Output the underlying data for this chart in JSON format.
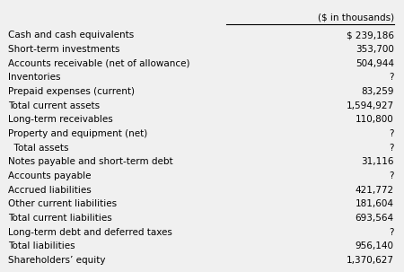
{
  "header": "($ in thousands)",
  "rows": [
    {
      "label": "Cash and cash equivalents",
      "value": "$ 239,186",
      "indent": 0
    },
    {
      "label": "Short-term investments",
      "value": "353,700",
      "indent": 0
    },
    {
      "label": "Accounts receivable (net of allowance)",
      "value": "504,944",
      "indent": 0
    },
    {
      "label": "Inventories",
      "value": "?",
      "indent": 0
    },
    {
      "label": "Prepaid expenses (current)",
      "value": "83,259",
      "indent": 0
    },
    {
      "label": "Total current assets",
      "value": "1,594,927",
      "indent": 0
    },
    {
      "label": "Long-term receivables",
      "value": "110,800",
      "indent": 0
    },
    {
      "label": "Property and equipment (net)",
      "value": "?",
      "indent": 0
    },
    {
      "label": "  Total assets",
      "value": "?",
      "indent": 0
    },
    {
      "label": "Notes payable and short-term debt",
      "value": "31,116",
      "indent": 0
    },
    {
      "label": "Accounts payable",
      "value": "?",
      "indent": 0
    },
    {
      "label": "Accrued liabilities",
      "value": "421,772",
      "indent": 0
    },
    {
      "label": "Other current liabilities",
      "value": "181,604",
      "indent": 0
    },
    {
      "label": "Total current liabilities",
      "value": "693,564",
      "indent": 0
    },
    {
      "label": "Long-term debt and deferred taxes",
      "value": "?",
      "indent": 0
    },
    {
      "label": "Total liabilities",
      "value": "956,140",
      "indent": 0
    },
    {
      "label": "Shareholders’ equity",
      "value": "1,370,627",
      "indent": 0
    }
  ],
  "bg_color": "#f0f0f0",
  "text_color": "#000000",
  "line_color": "#000000",
  "font_size": 7.5,
  "header_font_size": 7.5,
  "fig_width": 4.5,
  "fig_height": 3.03,
  "dpi": 100
}
